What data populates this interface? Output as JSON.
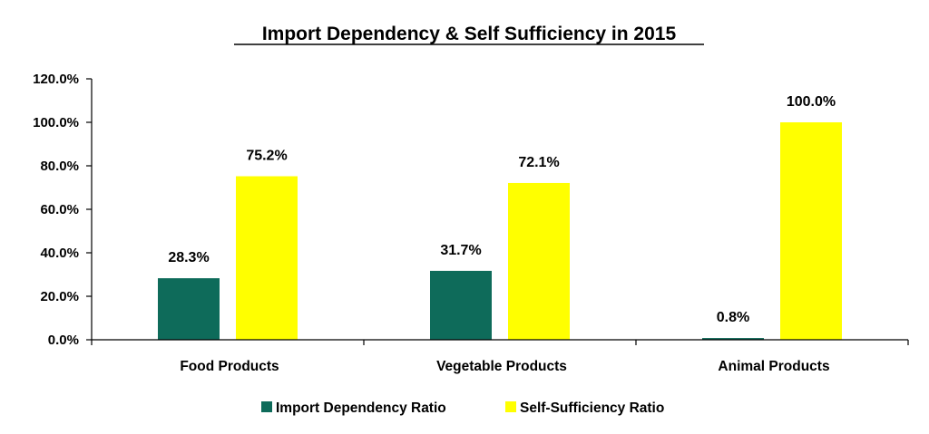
{
  "chart_data": {
    "type": "bar",
    "title": "Import Dependency & Self Sufficiency in  2015",
    "categories": [
      "Food Products",
      "Vegetable Products",
      "Animal Products"
    ],
    "series": [
      {
        "name": "Import Dependency Ratio",
        "color": "#0E6B5A",
        "values": [
          28.3,
          31.7,
          0.8
        ],
        "labels": [
          "28.3%",
          "31.7%",
          "0.8%"
        ]
      },
      {
        "name": "Self-Sufficiency Ratio",
        "color": "#FFFF00",
        "values": [
          75.2,
          72.1,
          100.0
        ],
        "labels": [
          "75.2%",
          "72.1%",
          "100.0%"
        ]
      }
    ],
    "ylim": [
      0,
      120
    ],
    "yticks": [
      0,
      20,
      40,
      60,
      80,
      100,
      120
    ],
    "ytick_labels": [
      "0.0%",
      "20.0%",
      "40.0%",
      "60.0%",
      "80.0%",
      "100.0%",
      "120.0%"
    ],
    "xlabel": "",
    "ylabel": "",
    "grid": false,
    "legend_position": "bottom"
  }
}
